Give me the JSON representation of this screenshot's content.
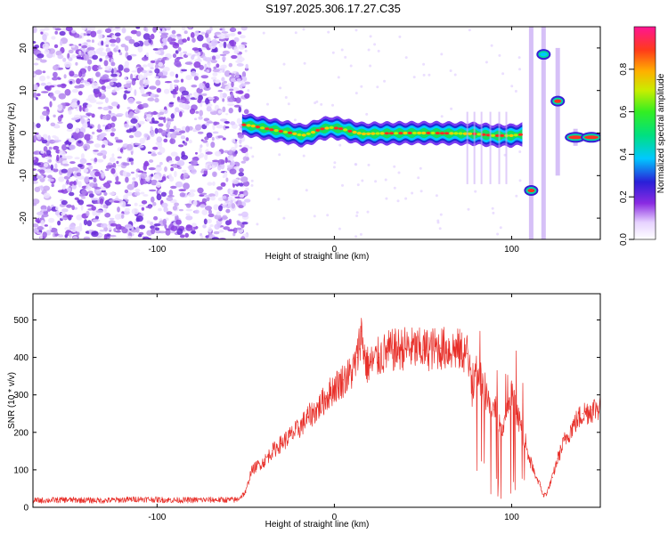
{
  "title": "S197.2025.306.17.27.C35",
  "chart_data": [
    {
      "type": "heatmap",
      "panel": "spectrogram",
      "xlabel": "Height of straight line (km)",
      "ylabel": "Frequency (Hz)",
      "xlim": [
        -170,
        150
      ],
      "ylim": [
        -25,
        25
      ],
      "xticks": [
        -100,
        0,
        100
      ],
      "yticks": [
        -20,
        -10,
        0,
        10,
        20
      ],
      "noise_region_x": [
        -170,
        -52
      ],
      "ridge": {
        "name": "Dominant Doppler line",
        "x": [
          -52,
          -45,
          -38,
          -30,
          -24,
          -18,
          -13,
          -8,
          -2,
          4,
          10,
          16,
          25,
          40,
          55,
          70,
          80,
          90,
          100,
          106
        ],
        "freq": [
          2.0,
          1.6,
          1.0,
          0.4,
          0.0,
          -0.6,
          0.0,
          0.9,
          1.3,
          1.0,
          0.3,
          -0.2,
          -0.1,
          0.0,
          0.0,
          -0.1,
          -0.2,
          -0.6,
          -0.6,
          -0.3
        ]
      },
      "blobs": [
        {
          "x": 111,
          "freq": -13.5
        },
        {
          "x": 118,
          "freq": 18.5
        },
        {
          "x": 126,
          "freq": 7.5
        },
        {
          "x": 136,
          "freq": -1.0
        },
        {
          "x": 145,
          "freq": -1.0
        }
      ],
      "colorbar": {
        "label": "Normalized spectral amplitude",
        "range": [
          0.0,
          1.0
        ],
        "ticks": [
          0.0,
          0.2,
          0.4,
          0.6,
          0.8
        ]
      }
    },
    {
      "type": "line",
      "panel": "snr",
      "xlabel": "Height of straight line (km)",
      "ylabel": "SNR (10 * v/v)",
      "xlim": [
        -170,
        150
      ],
      "ylim": [
        0,
        570
      ],
      "xticks": [
        -100,
        0,
        100
      ],
      "yticks": [
        0,
        100,
        200,
        300,
        400,
        500
      ],
      "series": [
        {
          "name": "SNR",
          "color": "#e8302a",
          "x": [
            -170,
            -150,
            -130,
            -110,
            -90,
            -70,
            -55,
            -50,
            -47,
            -44,
            -40,
            -35,
            -30,
            -25,
            -20,
            -15,
            -10,
            -5,
            0,
            5,
            10,
            13,
            15,
            18,
            20,
            25,
            30,
            40,
            50,
            60,
            70,
            75,
            78,
            80,
            85,
            90,
            95,
            100,
            105,
            108,
            110,
            113,
            116,
            118,
            120,
            123,
            126,
            130,
            135,
            140,
            145,
            150
          ],
          "y": [
            18,
            20,
            18,
            22,
            19,
            20,
            20,
            40,
            95,
            110,
            120,
            150,
            170,
            190,
            210,
            240,
            260,
            290,
            320,
            340,
            360,
            400,
            470,
            380,
            380,
            400,
            415,
            425,
            420,
            425,
            420,
            410,
            300,
            380,
            300,
            260,
            200,
            300,
            220,
            170,
            130,
            90,
            60,
            30,
            40,
            80,
            130,
            180,
            220,
            250,
            260,
            270
          ]
        }
      ]
    }
  ]
}
